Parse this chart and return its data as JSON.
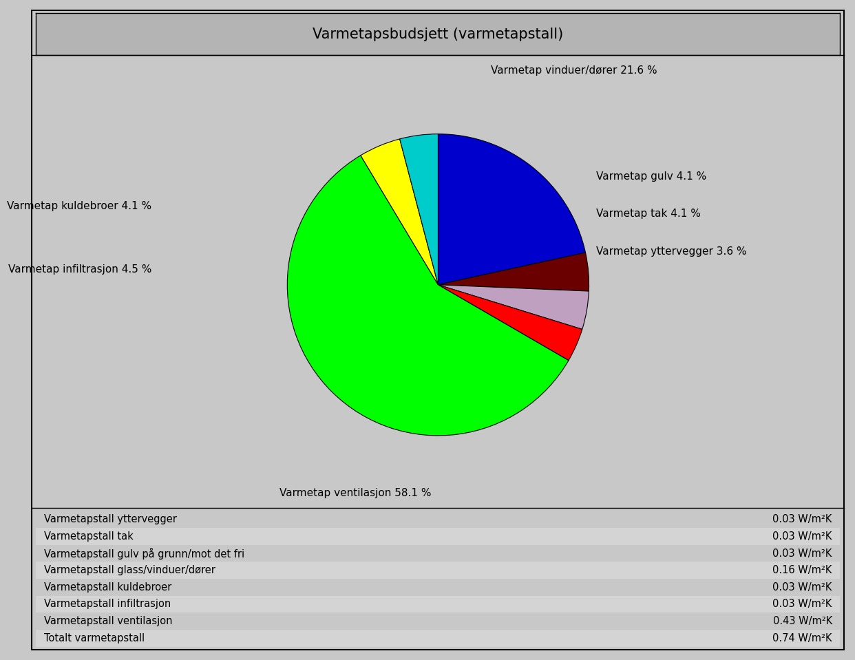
{
  "title": "Varmetapsbudsjett (varmetapstall)",
  "slices": [
    {
      "label": "Varmetap vinduer/dører 21.6 %",
      "value": 21.6,
      "color": "#0000CC"
    },
    {
      "label": "Varmetap gulv 4.1 %",
      "value": 4.1,
      "color": "#6B0000"
    },
    {
      "label": "Varmetap tak 4.1 %",
      "value": 4.1,
      "color": "#C0A0C0"
    },
    {
      "label": "Varmetap yttervegger 3.6 %",
      "value": 3.6,
      "color": "#FF0000"
    },
    {
      "label": "Varmetap ventilasjon 58.1 %",
      "value": 58.1,
      "color": "#00FF00"
    },
    {
      "label": "Varmetap infiltrasjon 4.5 %",
      "value": 4.5,
      "color": "#FFFF00"
    },
    {
      "label": "Varmetap kuldebroer 4.1 %",
      "value": 4.1,
      "color": "#00CCCC"
    }
  ],
  "table_rows": [
    {
      "label": "Varmetapstall yttervegger",
      "value": "0.03 W/m²K"
    },
    {
      "label": "Varmetapstall tak",
      "value": "0.03 W/m²K"
    },
    {
      "label": "Varmetapstall gulv på grunn/mot det fri",
      "value": "0.03 W/m²K"
    },
    {
      "label": "Varmetapstall glass/vinduer/dører",
      "value": "0.16 W/m²K"
    },
    {
      "label": "Varmetapstall kuldebroer",
      "value": "0.03 W/m²K"
    },
    {
      "label": "Varmetapstall infiltrasjon",
      "value": "0.03 W/m²K"
    },
    {
      "label": "Varmetapstall ventilasjon",
      "value": "0.43 W/m²K"
    },
    {
      "label": "Totalt varmetapstall",
      "value": "0.74 W/m²K"
    }
  ],
  "bg_color": "#C8C8C8",
  "title_bg_color": "#B4B4B4",
  "table_row_colors": [
    "#C8C8C8",
    "#D4D4D4"
  ],
  "label_fontsize": 11,
  "title_fontsize": 15
}
